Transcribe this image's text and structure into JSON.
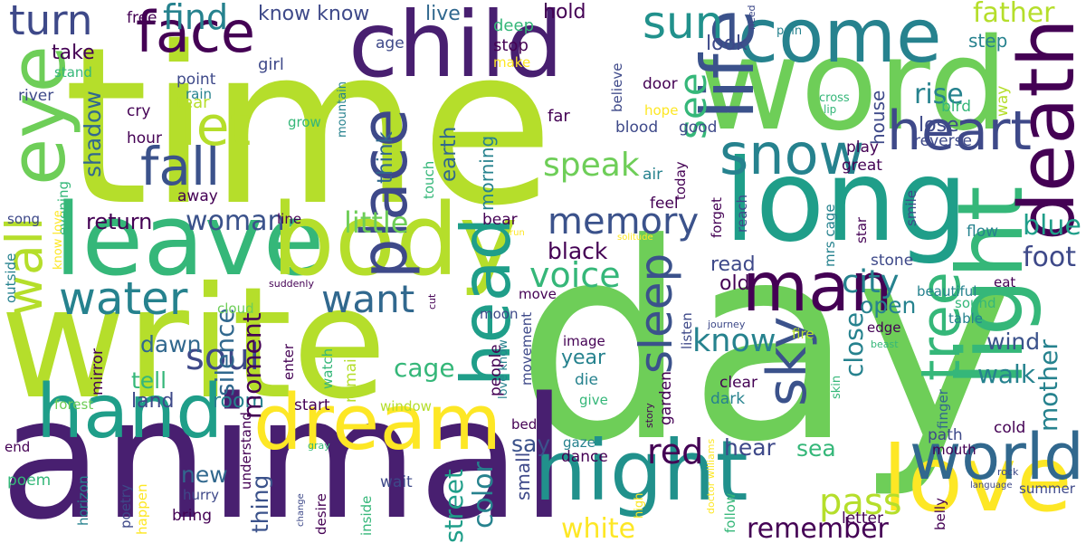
{
  "palette": {
    "background": "#ffffff",
    "dark_purple": "#440154",
    "indigo": "#3b528b",
    "blue": "#31688e",
    "teal": "#26828e",
    "green_teal": "#1f9e89",
    "green": "#35b779",
    "light_green": "#6ece58",
    "yellow_green": "#b5de2b",
    "yellow": "#fde725"
  },
  "words": [
    {
      "text": "time",
      "color": "#b5de2b",
      "vertical": false
    },
    {
      "text": "day",
      "color": "#6ece58",
      "vertical": false
    },
    {
      "text": "animal",
      "color": "#481f70",
      "vertical": false
    },
    {
      "text": "write",
      "color": "#b5de2b",
      "vertical": false
    },
    {
      "text": "word",
      "color": "#6ece58",
      "vertical": false
    },
    {
      "text": "long",
      "color": "#1f9e89",
      "vertical": false
    },
    {
      "text": "leave",
      "color": "#35b779",
      "vertical": false
    },
    {
      "text": "body",
      "color": "#b5de2b",
      "vertical": false
    },
    {
      "text": "child",
      "color": "#481f70",
      "vertical": false
    },
    {
      "text": "come",
      "color": "#26828e",
      "vertical": false
    },
    {
      "text": "night",
      "color": "#21918c",
      "vertical": false
    },
    {
      "text": "hand",
      "color": "#1f9e89",
      "vertical": false
    },
    {
      "text": "dream",
      "color": "#fde725",
      "vertical": false
    },
    {
      "text": "love",
      "color": "#fde725",
      "vertical": false
    },
    {
      "text": "light",
      "color": "#35b779",
      "vertical": true
    },
    {
      "text": "eye",
      "color": "#6ece58",
      "vertical": true
    },
    {
      "text": "life",
      "color": "#3b528b",
      "vertical": true
    },
    {
      "text": "death",
      "color": "#440154",
      "vertical": true
    },
    {
      "text": "face",
      "color": "#440154",
      "vertical": false
    },
    {
      "text": "place",
      "color": "#3e4989",
      "vertical": true
    },
    {
      "text": "man",
      "color": "#440154",
      "vertical": false
    },
    {
      "text": "world",
      "color": "#31688e",
      "vertical": false
    },
    {
      "text": "head",
      "color": "#1f9e89",
      "vertical": true
    },
    {
      "text": "snow",
      "color": "#26828e",
      "vertical": false
    },
    {
      "text": "heart",
      "color": "#3e4989",
      "vertical": false
    },
    {
      "text": "sky",
      "color": "#3b528b",
      "vertical": true
    },
    {
      "text": "tree",
      "color": "#35b779",
      "vertical": true
    },
    {
      "text": "fall",
      "color": "#3b528b",
      "vertical": false
    },
    {
      "text": "let",
      "color": "#b5de2b",
      "vertical": false
    },
    {
      "text": "sun",
      "color": "#21918c",
      "vertical": false
    },
    {
      "text": "turn",
      "color": "#3e4989",
      "vertical": false
    },
    {
      "text": "water",
      "color": "#26828e",
      "vertical": false
    },
    {
      "text": "wall",
      "color": "#b5de2b",
      "vertical": true
    },
    {
      "text": "memory",
      "color": "#3b528b",
      "vertical": false
    },
    {
      "text": "soul",
      "color": "#3e4989",
      "vertical": false
    },
    {
      "text": "sleep",
      "color": "#3b528b",
      "vertical": true
    },
    {
      "text": "want",
      "color": "#31688e",
      "vertical": false
    },
    {
      "text": "pass",
      "color": "#b5de2b",
      "vertical": false
    },
    {
      "text": "red",
      "color": "#440154",
      "vertical": false
    },
    {
      "text": "see",
      "color": "#35b779",
      "vertical": true
    },
    {
      "text": "find",
      "color": "#26828e",
      "vertical": false
    },
    {
      "text": "speak",
      "color": "#6ece58",
      "vertical": false
    },
    {
      "text": "voice",
      "color": "#35b779",
      "vertical": false
    },
    {
      "text": "city",
      "color": "#26828e",
      "vertical": false
    },
    {
      "text": "know",
      "color": "#26828e",
      "vertical": false
    },
    {
      "text": "father",
      "color": "#b5de2b",
      "vertical": false
    },
    {
      "text": "blue",
      "color": "#1f9e89",
      "vertical": false
    },
    {
      "text": "foot",
      "color": "#3e4989",
      "vertical": false
    },
    {
      "text": "white",
      "color": "#fde725",
      "vertical": false
    },
    {
      "text": "remember",
      "color": "#440154",
      "vertical": false
    },
    {
      "text": "little",
      "color": "#6ece58",
      "vertical": false
    },
    {
      "text": "woman",
      "color": "#3b528b",
      "vertical": false
    },
    {
      "text": "return",
      "color": "#440154",
      "vertical": false
    },
    {
      "text": "black",
      "color": "#440154",
      "vertical": false
    },
    {
      "text": "open",
      "color": "#26828e",
      "vertical": false
    },
    {
      "text": "rise",
      "color": "#26828e",
      "vertical": false
    },
    {
      "text": "lose",
      "color": "#3e4989",
      "vertical": false
    },
    {
      "text": "mother",
      "color": "#26828e",
      "vertical": true
    },
    {
      "text": "wind",
      "color": "#3b528b",
      "vertical": false
    },
    {
      "text": "walk",
      "color": "#26828e",
      "vertical": false
    },
    {
      "text": "hear",
      "color": "#3e4989",
      "vertical": false
    },
    {
      "text": "sea",
      "color": "#35b779",
      "vertical": false
    },
    {
      "text": "say",
      "color": "#3b528b",
      "vertical": false
    },
    {
      "text": "color",
      "color": "#26828e",
      "vertical": true
    },
    {
      "text": "street",
      "color": "#1f9e89",
      "vertical": true
    },
    {
      "text": "cage",
      "color": "#35b779",
      "vertical": false
    },
    {
      "text": "dawn",
      "color": "#31688e",
      "vertical": false
    },
    {
      "text": "tell",
      "color": "#35b779",
      "vertical": false
    },
    {
      "text": "land",
      "color": "#3e4989",
      "vertical": false
    },
    {
      "text": "room",
      "color": "#26828e",
      "vertical": false
    },
    {
      "text": "silence",
      "color": "#31688e",
      "vertical": true
    },
    {
      "text": "moment",
      "color": "#440154",
      "vertical": true
    },
    {
      "text": "shadow",
      "color": "#31688e",
      "vertical": true
    },
    {
      "text": "new",
      "color": "#31688e",
      "vertical": false
    },
    {
      "text": "thing",
      "color": "#3b528b",
      "vertical": true
    },
    {
      "text": "old",
      "color": "#440154",
      "vertical": false
    },
    {
      "text": "read",
      "color": "#3e4989",
      "vertical": false
    },
    {
      "text": "close",
      "color": "#26828e",
      "vertical": true
    },
    {
      "text": "look",
      "color": "#3e4989",
      "vertical": false
    },
    {
      "text": "take",
      "color": "#440154",
      "vertical": false
    },
    {
      "text": "step",
      "color": "#26828e",
      "vertical": false
    },
    {
      "text": "hold",
      "color": "#440154",
      "vertical": false
    },
    {
      "text": "live",
      "color": "#31688e",
      "vertical": false
    },
    {
      "text": "know know",
      "color": "#3e4989",
      "vertical": false
    },
    {
      "text": "free",
      "color": "#440154",
      "vertical": false
    },
    {
      "text": "deep",
      "color": "#35b779",
      "vertical": false
    },
    {
      "text": "stop",
      "color": "#440154",
      "vertical": false
    },
    {
      "text": "make",
      "color": "#fde725",
      "vertical": false
    },
    {
      "text": "age",
      "color": "#3e4989",
      "vertical": false
    },
    {
      "text": "girl",
      "color": "#3e4989",
      "vertical": false
    },
    {
      "text": "stand",
      "color": "#35b779",
      "vertical": false
    },
    {
      "text": "point",
      "color": "#3e4989",
      "vertical": false
    },
    {
      "text": "rain",
      "color": "#26828e",
      "vertical": false
    },
    {
      "text": "river",
      "color": "#3e4989",
      "vertical": false
    },
    {
      "text": "cry",
      "color": "#440154",
      "vertical": false
    },
    {
      "text": "tear",
      "color": "#b5de2b",
      "vertical": false
    },
    {
      "text": "hour",
      "color": "#440154",
      "vertical": false
    },
    {
      "text": "grow",
      "color": "#35b779",
      "vertical": false
    },
    {
      "text": "mountain",
      "color": "#26828e",
      "vertical": true
    },
    {
      "text": "think",
      "color": "#31688e",
      "vertical": true
    },
    {
      "text": "earth",
      "color": "#31688e",
      "vertical": true
    },
    {
      "text": "morning",
      "color": "#26828e",
      "vertical": true
    },
    {
      "text": "far",
      "color": "#440154",
      "vertical": false
    },
    {
      "text": "blood",
      "color": "#3e4989",
      "vertical": false
    },
    {
      "text": "good",
      "color": "#3e4989",
      "vertical": false
    },
    {
      "text": "hope",
      "color": "#fde725",
      "vertical": false
    },
    {
      "text": "door",
      "color": "#440154",
      "vertical": false
    },
    {
      "text": "believe",
      "color": "#3e4989",
      "vertical": true
    },
    {
      "text": "house",
      "color": "#3e4989",
      "vertical": true
    },
    {
      "text": "bird",
      "color": "#35b779",
      "vertical": false
    },
    {
      "text": "way",
      "color": "#b5de2b",
      "vertical": true
    },
    {
      "text": "cross",
      "color": "#35b779",
      "vertical": false
    },
    {
      "text": "lip",
      "color": "#35b779",
      "vertical": false
    },
    {
      "text": "pain",
      "color": "#26828e",
      "vertical": false
    },
    {
      "text": "need",
      "color": "#3e4989",
      "vertical": true
    },
    {
      "text": "reverse",
      "color": "#3e4989",
      "vertical": false
    },
    {
      "text": "play",
      "color": "#440154",
      "vertical": false
    },
    {
      "text": "great",
      "color": "#440154",
      "vertical": false
    },
    {
      "text": "air",
      "color": "#26828e",
      "vertical": false
    },
    {
      "text": "today",
      "color": "#440154",
      "vertical": true
    },
    {
      "text": "feel",
      "color": "#440154",
      "vertical": false
    },
    {
      "text": "touch",
      "color": "#35b779",
      "vertical": true
    },
    {
      "text": "evening",
      "color": "#35b779",
      "vertical": true
    },
    {
      "text": "away",
      "color": "#440154",
      "vertical": false
    },
    {
      "text": "song",
      "color": "#3e4989",
      "vertical": false
    },
    {
      "text": "know love",
      "color": "#fde725",
      "vertical": true
    },
    {
      "text": "line",
      "color": "#440154",
      "vertical": false
    },
    {
      "text": "bear",
      "color": "#440154",
      "vertical": false
    },
    {
      "text": "forget",
      "color": "#440154",
      "vertical": true
    },
    {
      "text": "reach",
      "color": "#3e4989",
      "vertical": true
    },
    {
      "text": "mrs cage",
      "color": "#26828e",
      "vertical": true
    },
    {
      "text": "star",
      "color": "#440154",
      "vertical": true
    },
    {
      "text": "smile",
      "color": "#3e4989",
      "vertical": true
    },
    {
      "text": "flow",
      "color": "#26828e",
      "vertical": false
    },
    {
      "text": "stone",
      "color": "#3e4989",
      "vertical": false
    },
    {
      "text": "outside",
      "color": "#26828e",
      "vertical": true
    },
    {
      "text": "suddenly",
      "color": "#440154",
      "vertical": false
    },
    {
      "text": "cloud",
      "color": "#6ece58",
      "vertical": false
    },
    {
      "text": "cut",
      "color": "#440154",
      "vertical": true
    },
    {
      "text": "move",
      "color": "#440154",
      "vertical": false
    },
    {
      "text": "moon",
      "color": "#3e4989",
      "vertical": false
    },
    {
      "text": "movement",
      "color": "#3e4989",
      "vertical": true
    },
    {
      "text": "love know",
      "color": "#26828e",
      "vertical": true
    },
    {
      "text": "solitude",
      "color": "#fde725",
      "vertical": false
    },
    {
      "text": "run",
      "color": "#fde725",
      "vertical": false
    },
    {
      "text": "eat",
      "color": "#440154",
      "vertical": false
    },
    {
      "text": "sound",
      "color": "#35b779",
      "vertical": false
    },
    {
      "text": "beautiful",
      "color": "#26828e",
      "vertical": false
    },
    {
      "text": "table",
      "color": "#26828e",
      "vertical": false
    },
    {
      "text": "edge",
      "color": "#440154",
      "vertical": false
    },
    {
      "text": "listen",
      "color": "#3e4989",
      "vertical": true
    },
    {
      "text": "journey",
      "color": "#3e4989",
      "vertical": false
    },
    {
      "text": "beast",
      "color": "#35b779",
      "vertical": false
    },
    {
      "text": "image",
      "color": "#440154",
      "vertical": false
    },
    {
      "text": "fire",
      "color": "#b5de2b",
      "vertical": false
    },
    {
      "text": "year",
      "color": "#26828e",
      "vertical": false
    },
    {
      "text": "die",
      "color": "#26828e",
      "vertical": false
    },
    {
      "text": "give",
      "color": "#35b779",
      "vertical": false
    },
    {
      "text": "remain",
      "color": "#b5de2b",
      "vertical": true
    },
    {
      "text": "people",
      "color": "#440154",
      "vertical": true
    },
    {
      "text": "mirror",
      "color": "#440154",
      "vertical": true
    },
    {
      "text": "watch",
      "color": "#35b779",
      "vertical": true
    },
    {
      "text": "enter",
      "color": "#440154",
      "vertical": true
    },
    {
      "text": "forest",
      "color": "#6ece58",
      "vertical": false
    },
    {
      "text": "start",
      "color": "#440154",
      "vertical": false
    },
    {
      "text": "window",
      "color": "#b5de2b",
      "vertical": false
    },
    {
      "text": "clear",
      "color": "#440154",
      "vertical": false
    },
    {
      "text": "dark",
      "color": "#26828e",
      "vertical": false
    },
    {
      "text": "skin",
      "color": "#35b779",
      "vertical": true
    },
    {
      "text": "garden",
      "color": "#440154",
      "vertical": true
    },
    {
      "text": "story",
      "color": "#440154",
      "vertical": true
    },
    {
      "text": "finger",
      "color": "#31688e",
      "vertical": true
    },
    {
      "text": "cold",
      "color": "#440154",
      "vertical": false
    },
    {
      "text": "path",
      "color": "#3e4989",
      "vertical": false
    },
    {
      "text": "mouth",
      "color": "#440154",
      "vertical": false
    },
    {
      "text": "end",
      "color": "#440154",
      "vertical": false
    },
    {
      "text": "understand",
      "color": "#440154",
      "vertical": true
    },
    {
      "text": "gaze",
      "color": "#26828e",
      "vertical": false
    },
    {
      "text": "dance",
      "color": "#440154",
      "vertical": false
    },
    {
      "text": "bed",
      "color": "#440154",
      "vertical": false
    },
    {
      "text": "small",
      "color": "#3e4989",
      "vertical": true
    },
    {
      "text": "gray",
      "color": "#35b779",
      "vertical": false
    },
    {
      "text": "poem",
      "color": "#35b779",
      "vertical": false
    },
    {
      "text": "horizon",
      "color": "#26828e",
      "vertical": true
    },
    {
      "text": "poetry",
      "color": "#3e4989",
      "vertical": true
    },
    {
      "text": "happen",
      "color": "#fde725",
      "vertical": true
    },
    {
      "text": "hurry",
      "color": "#3e4989",
      "vertical": false
    },
    {
      "text": "bring",
      "color": "#440154",
      "vertical": false
    },
    {
      "text": "change",
      "color": "#3e4989",
      "vertical": true
    },
    {
      "text": "desire",
      "color": "#440154",
      "vertical": true
    },
    {
      "text": "inside",
      "color": "#35b779",
      "vertical": true
    },
    {
      "text": "wait",
      "color": "#3e4989",
      "vertical": false
    },
    {
      "text": "high",
      "color": "#fde725",
      "vertical": true
    },
    {
      "text": "doctor williams",
      "color": "#fde725",
      "vertical": true
    },
    {
      "text": "follow",
      "color": "#35b779",
      "vertical": true
    },
    {
      "text": "letter",
      "color": "#440154",
      "vertical": false
    },
    {
      "text": "belly",
      "color": "#440154",
      "vertical": true
    },
    {
      "text": "rock",
      "color": "#3e4989",
      "vertical": false
    },
    {
      "text": "language",
      "color": "#3e4989",
      "vertical": false
    },
    {
      "text": "summer",
      "color": "#3e4989",
      "vertical": false
    }
  ]
}
